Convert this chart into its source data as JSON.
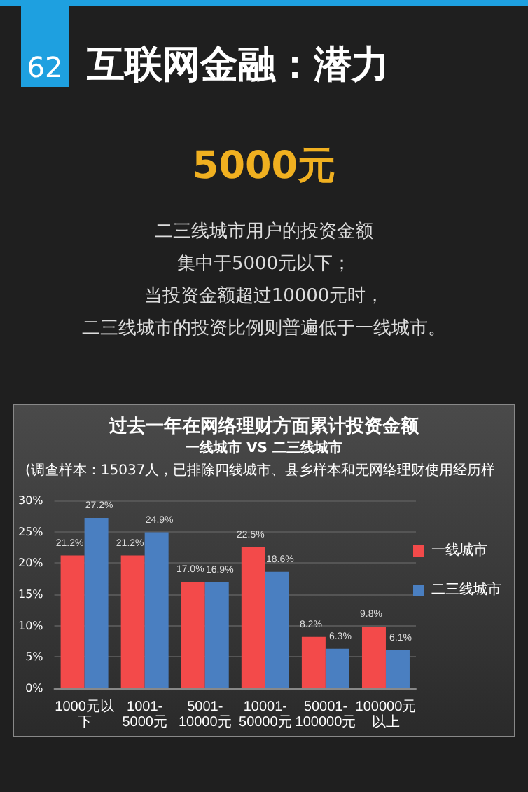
{
  "chart_data": {
    "type": "bar",
    "title": "过去一年在网络理财方面累计投资金额",
    "subtitle": "一线城市 VS 二三线城市",
    "annotations": [
      "62",
      "互联网金融：潜力",
      "5000元",
      "二三线城市用户的投资金额",
      "集中于5000元以下；",
      "当投资金额超过10000元时，",
      "二三线城市的投资比例则普遍低于一线城市。",
      "(调查样本：15037人，已排除四线城市、县乡样本和无网络理财使用经历样"
    ],
    "categories": [
      "1000元以下",
      "1001-5000元",
      "5001-10000元",
      "10001-50000元",
      "50001-100000元",
      "100000元以上"
    ],
    "series": [
      {
        "name": "一线城市",
        "color": "#f34a4a",
        "values": [
          21.2,
          21.2,
          17.0,
          22.5,
          8.2,
          9.8
        ],
        "value_labels": [
          "21.2%",
          "21.2%",
          "17.0%",
          "22.5%",
          "8.2%",
          "9.8%"
        ]
      },
      {
        "name": "二三线城市",
        "color": "#4a7fc1",
        "values": [
          27.2,
          24.9,
          16.9,
          18.6,
          6.3,
          6.1
        ],
        "value_labels": [
          "27.2%",
          "24.9%",
          "16.9%",
          "18.6%",
          "6.3%",
          "6.1%"
        ]
      }
    ],
    "ylim": [
      0,
      30
    ],
    "yticks": [
      {
        "value": 0,
        "label": "0%"
      },
      {
        "value": 5,
        "label": "5%"
      },
      {
        "value": 10,
        "label": "10%"
      },
      {
        "value": 15,
        "label": "15%"
      },
      {
        "value": 20,
        "label": "20%"
      },
      {
        "value": 25,
        "label": "25%"
      },
      {
        "value": 30,
        "label": "30%"
      }
    ],
    "grid": "y",
    "legend": "right"
  }
}
